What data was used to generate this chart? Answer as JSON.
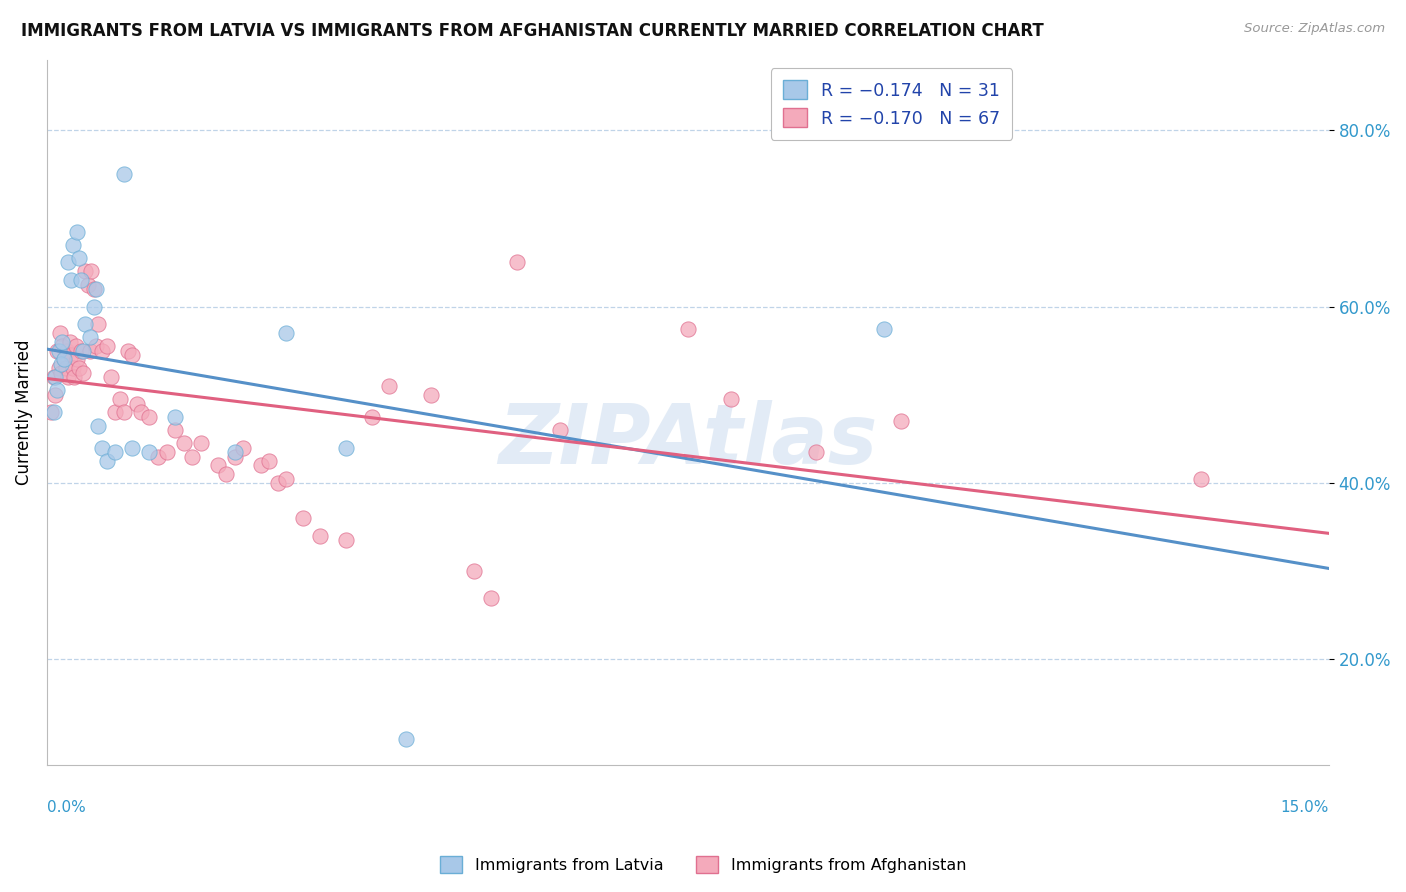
{
  "title": "IMMIGRANTS FROM LATVIA VS IMMIGRANTS FROM AFGHANISTAN CURRENTLY MARRIED CORRELATION CHART",
  "source": "Source: ZipAtlas.com",
  "ylabel": "Currently Married",
  "xmin": 0.0,
  "xmax": 15.0,
  "ymin": 8.0,
  "ymax": 88.0,
  "yticks": [
    20.0,
    40.0,
    60.0,
    80.0
  ],
  "ytick_labels": [
    "20.0%",
    "40.0%",
    "60.0%",
    "80.0%"
  ],
  "legend_label1": "R = −0.174   N = 31",
  "legend_label2": "R = −0.170   N = 67",
  "color_latvia_fill": "#a8c8e8",
  "color_latvia_edge": "#6aaed6",
  "color_afghanistan_fill": "#f4aabb",
  "color_afghanistan_edge": "#e07090",
  "color_line_latvia": "#5590c8",
  "color_line_afghanistan": "#e06080",
  "watermark_text": "ZIPAtlas",
  "watermark_color": "#d0dff0",
  "scatter_latvia": [
    [
      0.08,
      48.0
    ],
    [
      0.1,
      52.0
    ],
    [
      0.12,
      50.5
    ],
    [
      0.14,
      55.0
    ],
    [
      0.16,
      53.5
    ],
    [
      0.18,
      56.0
    ],
    [
      0.2,
      54.0
    ],
    [
      0.25,
      65.0
    ],
    [
      0.28,
      63.0
    ],
    [
      0.3,
      67.0
    ],
    [
      0.35,
      68.5
    ],
    [
      0.38,
      65.5
    ],
    [
      0.4,
      63.0
    ],
    [
      0.42,
      55.0
    ],
    [
      0.45,
      58.0
    ],
    [
      0.5,
      56.5
    ],
    [
      0.55,
      60.0
    ],
    [
      0.58,
      62.0
    ],
    [
      0.6,
      46.5
    ],
    [
      0.65,
      44.0
    ],
    [
      0.7,
      42.5
    ],
    [
      0.8,
      43.5
    ],
    [
      0.9,
      75.0
    ],
    [
      1.0,
      44.0
    ],
    [
      1.2,
      43.5
    ],
    [
      1.5,
      47.5
    ],
    [
      2.2,
      43.5
    ],
    [
      2.8,
      57.0
    ],
    [
      3.5,
      44.0
    ],
    [
      4.2,
      11.0
    ],
    [
      9.8,
      57.5
    ]
  ],
  "scatter_afghanistan": [
    [
      0.05,
      48.0
    ],
    [
      0.08,
      52.0
    ],
    [
      0.1,
      50.0
    ],
    [
      0.12,
      55.0
    ],
    [
      0.14,
      53.0
    ],
    [
      0.15,
      57.0
    ],
    [
      0.17,
      52.5
    ],
    [
      0.18,
      55.5
    ],
    [
      0.2,
      54.0
    ],
    [
      0.22,
      53.0
    ],
    [
      0.24,
      55.0
    ],
    [
      0.25,
      52.0
    ],
    [
      0.27,
      56.0
    ],
    [
      0.28,
      54.5
    ],
    [
      0.3,
      53.0
    ],
    [
      0.32,
      52.0
    ],
    [
      0.34,
      55.5
    ],
    [
      0.35,
      54.0
    ],
    [
      0.38,
      53.0
    ],
    [
      0.4,
      55.0
    ],
    [
      0.42,
      52.5
    ],
    [
      0.45,
      64.0
    ],
    [
      0.48,
      62.5
    ],
    [
      0.5,
      55.0
    ],
    [
      0.52,
      64.0
    ],
    [
      0.55,
      62.0
    ],
    [
      0.58,
      55.5
    ],
    [
      0.6,
      58.0
    ],
    [
      0.65,
      55.0
    ],
    [
      0.7,
      55.5
    ],
    [
      0.75,
      52.0
    ],
    [
      0.8,
      48.0
    ],
    [
      0.85,
      49.5
    ],
    [
      0.9,
      48.0
    ],
    [
      0.95,
      55.0
    ],
    [
      1.0,
      54.5
    ],
    [
      1.05,
      49.0
    ],
    [
      1.1,
      48.0
    ],
    [
      1.2,
      47.5
    ],
    [
      1.3,
      43.0
    ],
    [
      1.4,
      43.5
    ],
    [
      1.5,
      46.0
    ],
    [
      1.6,
      44.5
    ],
    [
      1.7,
      43.0
    ],
    [
      1.8,
      44.5
    ],
    [
      2.0,
      42.0
    ],
    [
      2.1,
      41.0
    ],
    [
      2.2,
      43.0
    ],
    [
      2.3,
      44.0
    ],
    [
      2.5,
      42.0
    ],
    [
      2.6,
      42.5
    ],
    [
      2.7,
      40.0
    ],
    [
      2.8,
      40.5
    ],
    [
      3.0,
      36.0
    ],
    [
      3.2,
      34.0
    ],
    [
      3.5,
      33.5
    ],
    [
      3.8,
      47.5
    ],
    [
      4.0,
      51.0
    ],
    [
      4.5,
      50.0
    ],
    [
      5.0,
      30.0
    ],
    [
      5.2,
      27.0
    ],
    [
      5.5,
      65.0
    ],
    [
      6.0,
      46.0
    ],
    [
      7.5,
      57.5
    ],
    [
      8.0,
      49.5
    ],
    [
      9.0,
      43.5
    ],
    [
      10.0,
      47.0
    ],
    [
      13.5,
      40.5
    ]
  ]
}
